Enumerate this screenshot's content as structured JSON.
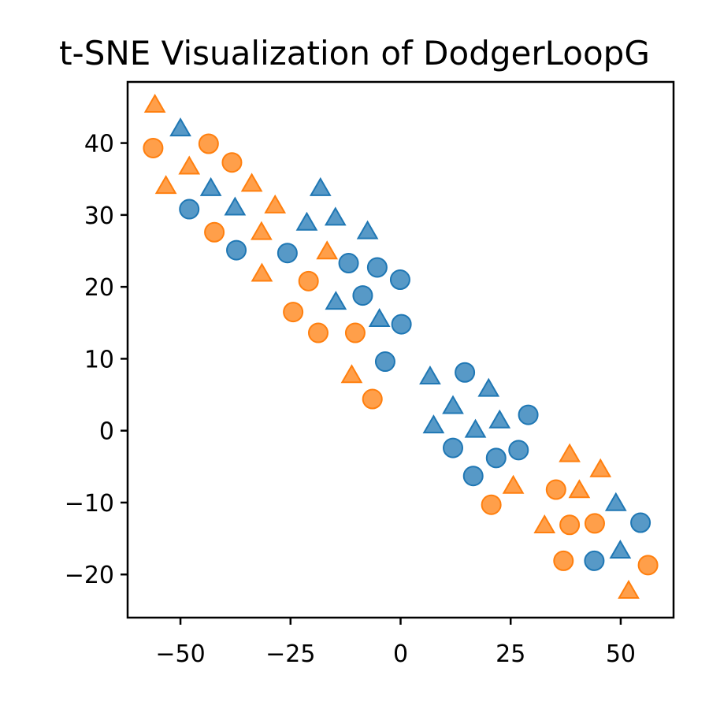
{
  "chart_data": {
    "type": "scatter",
    "title": "t-SNE Visualization of DodgerLoopG",
    "xlabel": "",
    "ylabel": "",
    "xlim": [
      -62,
      62
    ],
    "ylim": [
      -26,
      48.5
    ],
    "xticks": [
      -50,
      -25,
      0,
      25,
      50
    ],
    "yticks": [
      40,
      30,
      20,
      10,
      0,
      -10,
      -20
    ],
    "xtick_labels": [
      "−50",
      "−25",
      "0",
      "25",
      "50"
    ],
    "ytick_labels": [
      "40",
      "30",
      "20",
      "10",
      "0",
      "−10",
      "−20"
    ],
    "grid": false,
    "legend": false,
    "series": [
      {
        "color": "#1f77b4",
        "marker": "circle",
        "points": [
          [
            -48,
            30.8
          ],
          [
            -37.3,
            25.1
          ],
          [
            -25.7,
            24.7
          ],
          [
            -11.8,
            23.3
          ],
          [
            -5.3,
            22.7
          ],
          [
            -0.1,
            21
          ],
          [
            -8.6,
            18.8
          ],
          [
            0.2,
            14.8
          ],
          [
            -3.5,
            9.6
          ],
          [
            14.6,
            8.1
          ],
          [
            29,
            2.2
          ],
          [
            11.9,
            -2.4
          ],
          [
            21.7,
            -3.8
          ],
          [
            26.8,
            -2.7
          ],
          [
            16.5,
            -6.3
          ],
          [
            44,
            -18.1
          ],
          [
            54.5,
            -12.8
          ]
        ]
      },
      {
        "color": "#1f77b4",
        "marker": "triangle",
        "points": [
          [
            -50,
            41.8
          ],
          [
            -43.1,
            33.5
          ],
          [
            -37.6,
            30.8
          ],
          [
            -18.2,
            33.5
          ],
          [
            -21.3,
            28.7
          ],
          [
            -14.8,
            29.4
          ],
          [
            -7.5,
            27.5
          ],
          [
            -14.7,
            17.7
          ],
          [
            -4.8,
            15.3
          ],
          [
            6.7,
            7.3
          ],
          [
            11.9,
            3.2
          ],
          [
            20,
            5.6
          ],
          [
            7.5,
            0.5
          ],
          [
            17,
            -0.1
          ],
          [
            22.5,
            1.2
          ],
          [
            48.9,
            -10.3
          ],
          [
            49.9,
            -16.9
          ]
        ]
      },
      {
        "color": "#ff7f0e",
        "marker": "circle",
        "points": [
          [
            -56.2,
            39.3
          ],
          [
            -43.6,
            39.9
          ],
          [
            -38.3,
            37.3
          ],
          [
            -42.3,
            27.6
          ],
          [
            -20.9,
            20.8
          ],
          [
            -24.4,
            16.5
          ],
          [
            -18.7,
            13.6
          ],
          [
            -10.3,
            13.6
          ],
          [
            -6.4,
            4.4
          ],
          [
            20.6,
            -10.3
          ],
          [
            35.3,
            -8.2
          ],
          [
            38.4,
            -13.1
          ],
          [
            44.1,
            -12.9
          ],
          [
            37,
            -18.1
          ],
          [
            56.2,
            -18.7
          ]
        ]
      },
      {
        "color": "#ff7f0e",
        "marker": "triangle",
        "points": [
          [
            -55.8,
            45.1
          ],
          [
            -53.3,
            33.8
          ],
          [
            -48,
            36.5
          ],
          [
            -33.8,
            34.1
          ],
          [
            -28.5,
            31.1
          ],
          [
            -31.6,
            27.4
          ],
          [
            -31.5,
            21.6
          ],
          [
            -16.7,
            24.7
          ],
          [
            -11.1,
            7.5
          ],
          [
            25.6,
            -7.9
          ],
          [
            32.7,
            -13.4
          ],
          [
            38.4,
            -3.5
          ],
          [
            40.6,
            -8.5
          ],
          [
            45.4,
            -5.6
          ],
          [
            51.8,
            -22.5
          ]
        ]
      }
    ]
  }
}
